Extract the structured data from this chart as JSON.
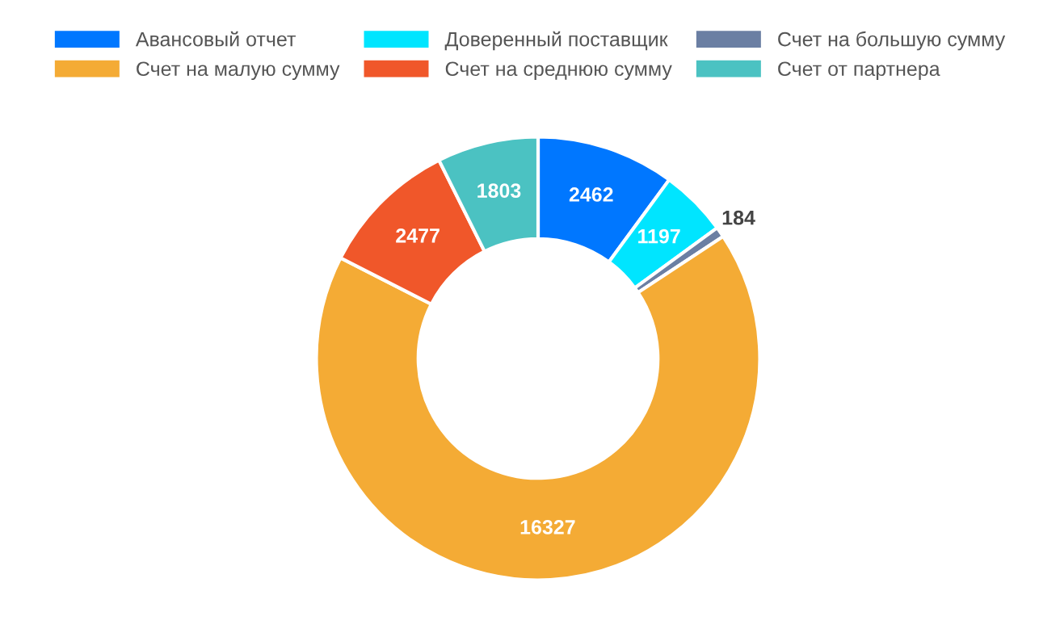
{
  "chart_data": {
    "type": "donut",
    "categories": [
      "Авансовый отчет",
      "Доверенный поставщик",
      "Счет на большую сумму",
      "Счет на малую сумму",
      "Счет на среднюю сумму",
      "Счет от партнера"
    ],
    "values": [
      2462,
      1197,
      184,
      16327,
      2477,
      1803
    ],
    "colors": [
      "#0077ff",
      "#00e5ff",
      "#6b7fa3",
      "#f4ab35",
      "#f0572a",
      "#4bc2c2"
    ],
    "data_labels": true,
    "legend": "top"
  }
}
